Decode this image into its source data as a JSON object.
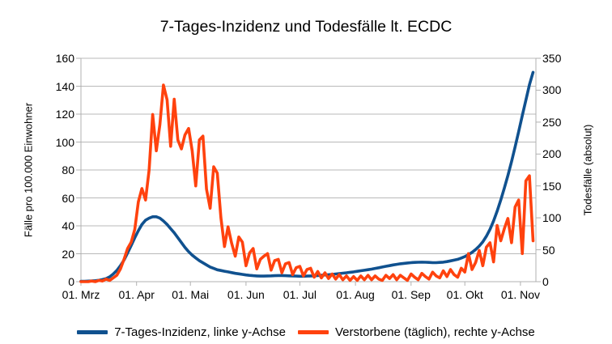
{
  "chart_data": {
    "type": "line",
    "title": "7-Tages-Inzidenz und Todesfälle lt. ECDC",
    "ylabel_left": "Fälle pro 100.000 Einwohner",
    "ylabel_right": "Todesfälle (absolut)",
    "grid": "horizontal",
    "legend_position": "bottom",
    "y_left": {
      "min": 0,
      "max": 160,
      "ticks": [
        0,
        20,
        40,
        60,
        80,
        100,
        120,
        140,
        160
      ]
    },
    "y_right": {
      "min": 0,
      "max": 350,
      "ticks": [
        0,
        50,
        100,
        150,
        200,
        250,
        300,
        350
      ]
    },
    "x_ticks": [
      "01. Mrz",
      "01. Apr",
      "01. Mai",
      "01. Jun",
      "01. Jul",
      "01. Aug",
      "01. Sep",
      "01. Okt",
      "01. Nov"
    ],
    "x_tick_days": [
      0,
      31,
      61,
      92,
      122,
      153,
      184,
      214,
      245
    ],
    "x_domain_days": [
      0,
      253.6
    ],
    "colors": {
      "incidence": "#10518f",
      "deaths": "#ff420e",
      "grid": "#b9b9b9",
      "axis": "#b0b0b0",
      "text": "#000000"
    },
    "series": [
      {
        "name": "7-Tages-Inzidenz, linke y-Achse",
        "axis": "left",
        "color": "#10518f",
        "start_day": 0,
        "day_step": 2,
        "values": [
          0.3,
          0.3,
          0.4,
          0.5,
          0.7,
          1,
          1.5,
          2.2,
          3.5,
          5.5,
          8,
          11.5,
          15.5,
          20.5,
          26,
          31.5,
          36.5,
          41,
          44,
          45.5,
          46.5,
          46.5,
          45.5,
          43.5,
          41,
          38,
          35,
          31.5,
          28,
          24.5,
          21.5,
          19,
          17,
          15,
          13.5,
          12,
          10.5,
          9.5,
          8.5,
          8,
          7.5,
          7,
          6.5,
          6,
          5.6,
          5.2,
          4.8,
          4.5,
          4.3,
          4.1,
          4.0,
          4.0,
          4.1,
          4.2,
          4.3,
          4.4,
          4.4,
          4.3,
          4.2,
          4.1,
          4.0,
          3.9,
          3.9,
          4.0,
          4.1,
          4.2,
          4.4,
          4.6,
          4.8,
          5.0,
          5.2,
          5.5,
          5.8,
          6.1,
          6.4,
          6.7,
          7.0,
          7.4,
          7.8,
          8.2,
          8.6,
          9.0,
          9.5,
          10.0,
          10.5,
          11.0,
          11.5,
          12.0,
          12.4,
          12.8,
          13.1,
          13.4,
          13.6,
          13.8,
          13.9,
          14.0,
          13.9,
          13.8,
          13.6,
          13.6,
          13.8,
          14.0,
          14.4,
          14.9,
          15.4,
          16.0,
          16.9,
          18.0,
          19.3,
          21,
          23,
          25.5,
          28.5,
          32.5,
          37.5,
          43.5,
          50.5,
          58.5,
          67,
          76,
          86,
          96.5,
          107.5,
          119,
          130,
          141,
          150
        ]
      },
      {
        "name": "Verstorbene (täglich), rechte y-Achse",
        "axis": "right",
        "color": "#ff420e",
        "start_day": 0,
        "day_step": 2,
        "values": [
          0,
          0,
          0,
          1,
          0,
          2,
          1,
          4,
          2,
          6,
          10,
          20,
          35,
          52,
          62,
          82,
          125,
          146,
          128,
          175,
          262,
          205,
          246,
          308,
          285,
          212,
          286,
          222,
          208,
          230,
          240,
          205,
          150,
          222,
          228,
          145,
          115,
          180,
          170,
          100,
          55,
          86,
          60,
          40,
          70,
          62,
          25,
          45,
          52,
          20,
          35,
          40,
          44,
          18,
          33,
          35,
          14,
          28,
          30,
          11,
          22,
          24,
          9,
          19,
          21,
          7,
          16,
          6,
          14,
          5,
          12,
          4,
          11,
          3,
          9,
          2,
          8,
          2,
          9,
          3,
          10,
          3,
          9,
          4,
          2,
          10,
          5,
          11,
          3,
          10,
          6,
          2,
          12,
          7,
          3,
          13,
          8,
          4,
          15,
          9,
          6,
          17,
          8,
          19,
          11,
          7,
          21,
          15,
          44,
          19,
          30,
          49,
          25,
          54,
          61,
          31,
          88,
          64,
          83,
          99,
          61,
          117,
          128,
          44,
          158,
          166,
          64
        ]
      }
    ]
  }
}
